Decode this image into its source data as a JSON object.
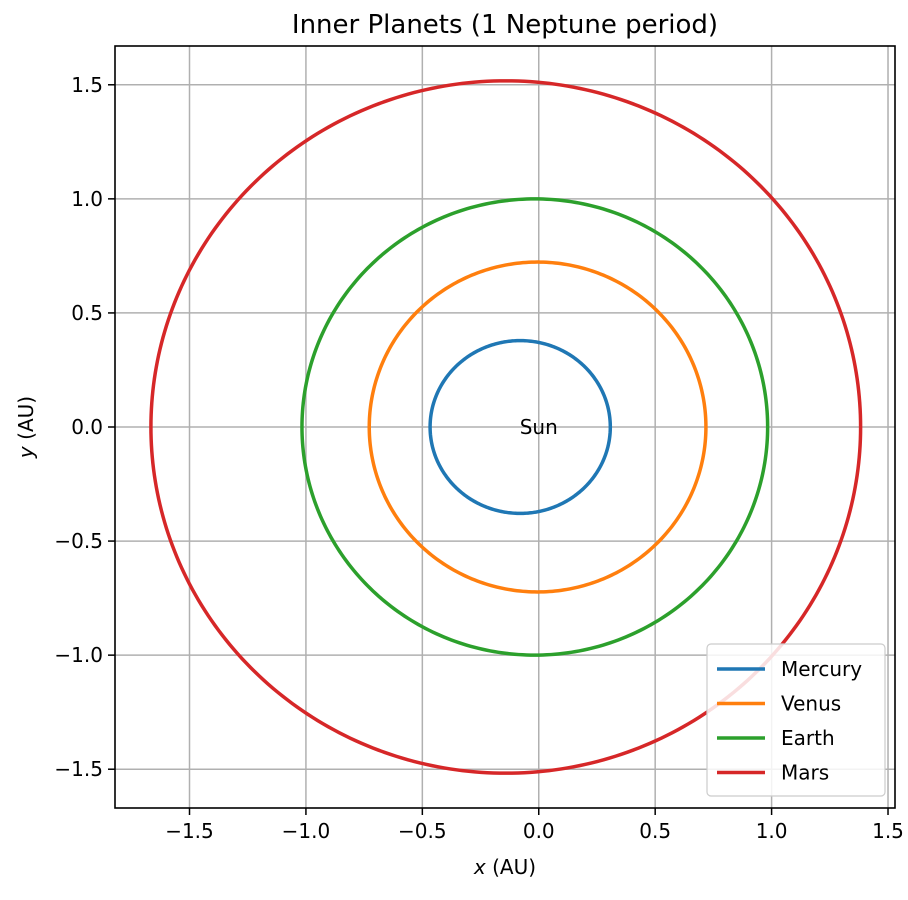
{
  "chart_data": {
    "type": "line",
    "title": "Inner Planets (1 Neptune period)",
    "xlabel_var": "x",
    "xlabel_unit": " (AU)",
    "ylabel_var": "y",
    "ylabel_unit": " (AU)",
    "xlim": [
      -1.82,
      1.53
    ],
    "ylim": [
      -1.67,
      1.67
    ],
    "xticks": [
      -1.5,
      -1.0,
      -0.5,
      0.0,
      0.5,
      1.0,
      1.5
    ],
    "xtick_labels": [
      "−1.5",
      "−1.0",
      "−0.5",
      "0.0",
      "0.5",
      "1.0",
      "1.5"
    ],
    "yticks": [
      1.5,
      1.0,
      0.5,
      0.0,
      -0.5,
      -1.0,
      -1.5
    ],
    "ytick_labels": [
      "1.5",
      "1.0",
      "0.5",
      "0.0",
      "−0.5",
      "−1.0",
      "−1.5"
    ],
    "grid": true,
    "legend_position": "lower-right",
    "annotation": {
      "text": "Sun",
      "x": 0.0,
      "y": 0.0
    },
    "series": [
      {
        "name": "Mercury",
        "color": "#1f77b4",
        "a": 0.387,
        "e": 0.206
      },
      {
        "name": "Venus",
        "color": "#ff7f0e",
        "a": 0.723,
        "e": 0.007
      },
      {
        "name": "Earth",
        "color": "#2ca02c",
        "a": 1.0,
        "e": 0.017
      },
      {
        "name": "Mars",
        "color": "#d62728",
        "a": 1.524,
        "e": 0.093
      }
    ]
  }
}
